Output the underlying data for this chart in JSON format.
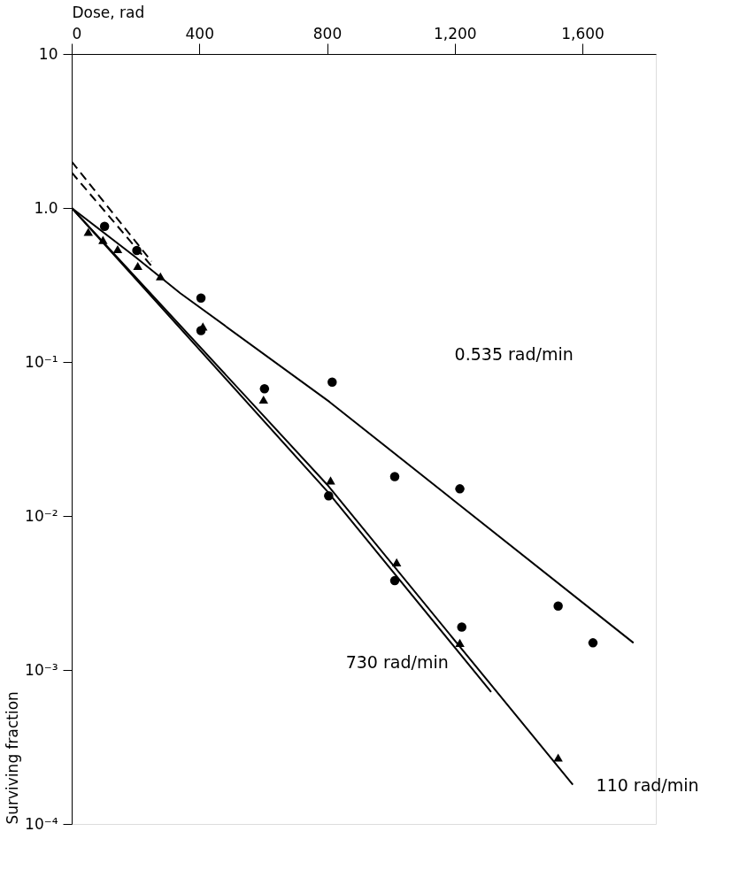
{
  "chart_data": {
    "type": "scatter",
    "xlabel": "Dose, rad",
    "ylabel": "Surviving fraction",
    "log": "y",
    "grid": false,
    "xlim": [
      0,
      1830
    ],
    "xticks": [
      0,
      400,
      800,
      {
        "value": 1200,
        "label": "1,200"
      },
      {
        "value": 1600,
        "label": "1,600"
      }
    ],
    "ylim": [
      0.0001,
      10
    ],
    "yticks": [
      {
        "value": 10,
        "label": "10"
      },
      {
        "value": 1,
        "label": "1.0"
      },
      {
        "value": 0.1,
        "label": "10⁻¹"
      },
      {
        "value": 0.01,
        "label": "10⁻²"
      },
      {
        "value": 0.001,
        "label": "10⁻³"
      },
      {
        "value": 0.0001,
        "label": "10⁻⁴"
      }
    ],
    "series": [
      {
        "marker": "circle",
        "color": "#000000",
        "x": [
          204,
          405,
          816,
          1012,
          1216,
          1524,
          1633
        ],
        "values": [
          0.53,
          0.26,
          0.074,
          0.018,
          0.015,
          0.0026,
          0.0015
        ]
      },
      {
        "marker": "circle",
        "color": "#000000",
        "x": [
          103,
          405,
          604,
          805,
          1012,
          1222
        ],
        "values": [
          0.76,
          0.16,
          0.067,
          0.0135,
          0.0038,
          0.0019
        ]
      },
      {
        "marker": "triangle",
        "color": "#000000",
        "x": [
          52,
          98,
          144,
          207,
          278,
          411,
          601,
          811,
          1018,
          1216,
          1524
        ],
        "values": [
          0.7,
          0.62,
          0.54,
          0.42,
          0.36,
          0.17,
          0.057,
          0.017,
          0.005,
          0.0015,
          0.00027
        ]
      },
      {
        "type": "line",
        "line_style": "solid",
        "color": "#000000",
        "x": [
          0,
          200,
          340,
          808,
          1760
        ],
        "values": [
          1.0,
          0.48,
          0.28,
          0.055,
          0.0015
        ]
      },
      {
        "type": "line",
        "line_style": "solid",
        "color": "#000000",
        "x": [
          0,
          800,
          1314
        ],
        "values": [
          1.0,
          0.0145,
          0.00072
        ]
      },
      {
        "type": "line",
        "line_style": "solid",
        "color": "#000000",
        "x": [
          0,
          800,
          1570
        ],
        "values": [
          1.0,
          0.016,
          0.00018
        ]
      },
      {
        "type": "line",
        "line_style": "dashed",
        "color": "#000000",
        "x": [
          0,
          250
        ],
        "values": [
          2.0,
          0.45
        ]
      },
      {
        "type": "line",
        "line_style": "dashed",
        "color": "#000000",
        "x": [
          0,
          250
        ],
        "values": [
          1.7,
          0.42
        ]
      }
    ],
    "annotations": [
      "0.535 rad/min",
      "730 rad/min",
      "110 rad/min"
    ]
  }
}
